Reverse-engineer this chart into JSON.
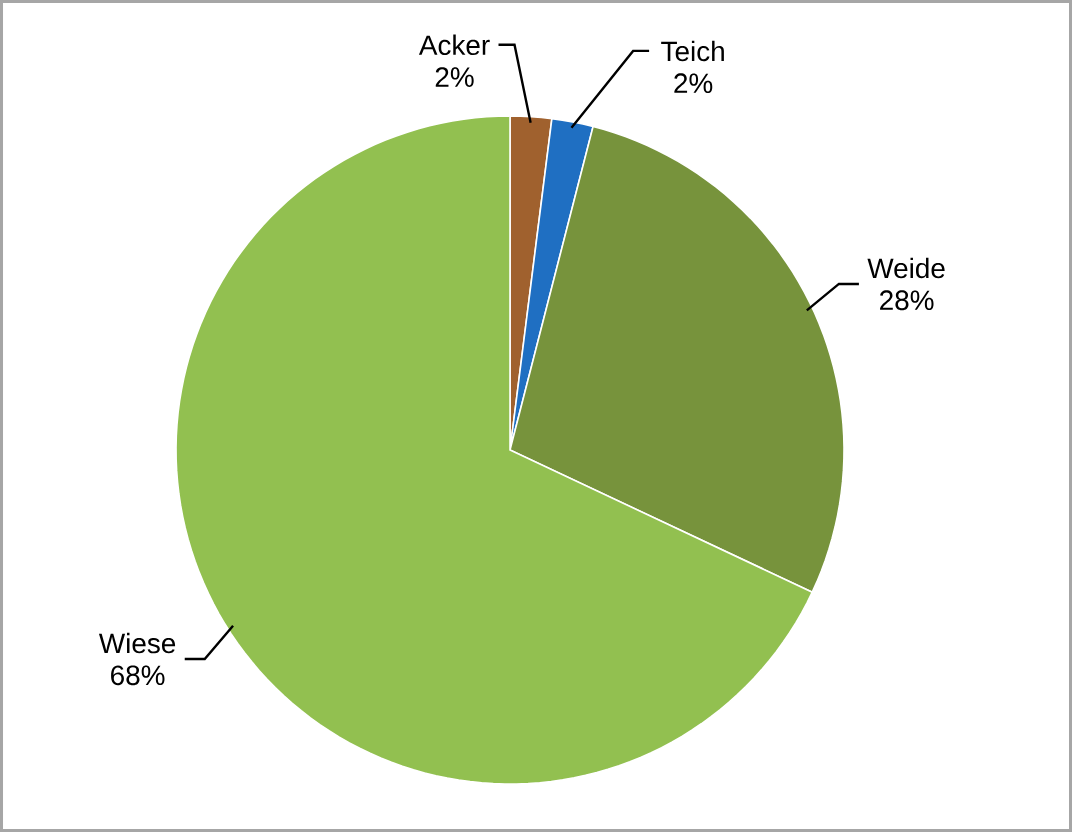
{
  "chart_data": {
    "type": "pie",
    "categories": [
      "Acker",
      "Teich",
      "Weide",
      "Wiese"
    ],
    "values": [
      2,
      2,
      28,
      68
    ],
    "value_labels": [
      "2%",
      "2%",
      "28%",
      "68%"
    ],
    "colors": [
      "#a0612e",
      "#1f6fc2",
      "#77933c",
      "#92c050"
    ]
  }
}
